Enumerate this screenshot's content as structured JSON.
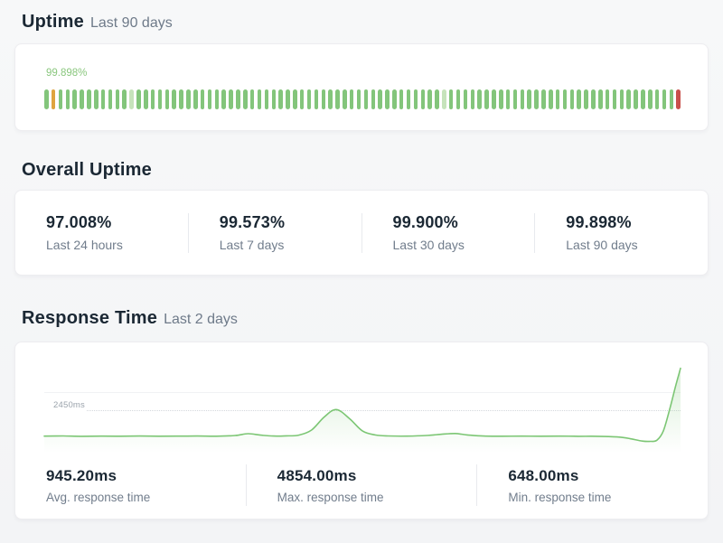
{
  "uptime_section": {
    "title": "Uptime",
    "subtitle": "Last 90 days",
    "chart": {
      "label": "99.898%"
    }
  },
  "overall_section": {
    "title": "Overall Uptime",
    "stats": [
      {
        "value": "97.008%",
        "label": "Last 24 hours"
      },
      {
        "value": "99.573%",
        "label": "Last 7 days"
      },
      {
        "value": "99.900%",
        "label": "Last 30 days"
      },
      {
        "value": "99.898%",
        "label": "Last 90 days"
      }
    ]
  },
  "response_section": {
    "title": "Response Time",
    "subtitle": "Last 2 days",
    "gridline_label": "2450ms",
    "stats": [
      {
        "value": "945.20ms",
        "label": "Avg. response time"
      },
      {
        "value": "4854.00ms",
        "label": "Max. response time"
      },
      {
        "value": "648.00ms",
        "label": "Min. response time"
      }
    ]
  },
  "chart_data": [
    {
      "type": "bar",
      "title": "Uptime Last 90 days",
      "uptime_label": "99.898%",
      "bar_count": 90,
      "default_status": "up",
      "bar_status_by_index": {
        "2": "degraded",
        "13": "partial",
        "57": "partial",
        "90": "down"
      },
      "colors": {
        "up": "#83c57b",
        "degraded": "#dfa43e",
        "partial": "#c6e3bb",
        "down": "#c9504b"
      }
    },
    {
      "type": "area",
      "title": "Response Time Last 2 days",
      "ylabel": "ms",
      "ylim": [
        0,
        5300
      ],
      "gridline": {
        "value": 2450,
        "label": "2450ms"
      },
      "avg_ms": 945.2,
      "max_ms": 4854.0,
      "min_ms": 648.0,
      "line_color": "#7cc674",
      "x_percent": [
        0,
        3,
        6,
        9,
        12,
        15,
        18,
        21,
        24,
        27,
        30,
        32,
        34,
        36,
        38,
        40,
        42,
        44,
        45.9,
        48,
        50,
        52,
        54,
        57,
        60,
        62.5,
        64.6,
        66.5,
        69,
        72,
        75,
        78,
        81,
        84,
        87,
        90,
        92,
        94,
        95.3,
        96.3,
        97.3,
        98.3,
        99.2,
        100
      ],
      "values_ms": [
        950,
        960,
        940,
        950,
        945,
        955,
        945,
        950,
        955,
        945,
        985,
        1090,
        1010,
        955,
        965,
        1010,
        1300,
        2050,
        2480,
        1950,
        1250,
        1020,
        960,
        950,
        985,
        1060,
        1100,
        1020,
        955,
        945,
        950,
        945,
        950,
        942,
        940,
        905,
        810,
        665,
        648,
        720,
        1250,
        2500,
        3800,
        4854
      ]
    }
  ]
}
